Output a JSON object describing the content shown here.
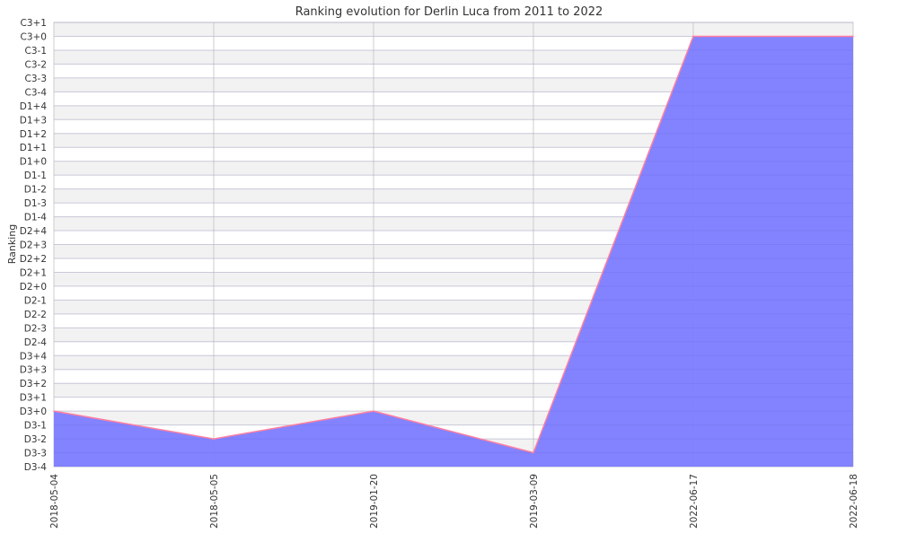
{
  "chart_data": {
    "type": "area",
    "title": "Ranking evolution for Derlin Luca from 2011 to 2022",
    "xlabel": "",
    "ylabel": "Ranking",
    "y_tick_labels": [
      "D3-4",
      "D3-3",
      "D3-2",
      "D3-1",
      "D3+0",
      "D3+1",
      "D3+2",
      "D3+3",
      "D3+4",
      "D2-4",
      "D2-3",
      "D2-2",
      "D2-1",
      "D2+0",
      "D2+1",
      "D2+2",
      "D2+3",
      "D2+4",
      "D1-4",
      "D1-3",
      "D1-2",
      "D1-1",
      "D1+0",
      "D1+1",
      "D1+2",
      "D1+3",
      "D1+4",
      "C3-4",
      "C3-3",
      "C3-2",
      "C3-1",
      "C3+0",
      "C3+1"
    ],
    "categories": [
      "2018-05-04",
      "2018-05-05",
      "2019-01-20",
      "2019-03-09",
      "2022-06-17",
      "2022-06-18"
    ],
    "series": [
      {
        "name": "Ranking",
        "values": [
          "D3+0",
          "D3-2",
          "D3+0",
          "D3-3",
          "C3+0",
          "C3+0"
        ]
      }
    ],
    "grid": true,
    "colors": {
      "fill": "#7f7fff",
      "line": "#ff7fa0",
      "band": "#f2f2f2",
      "grid": "#dddddd"
    }
  }
}
